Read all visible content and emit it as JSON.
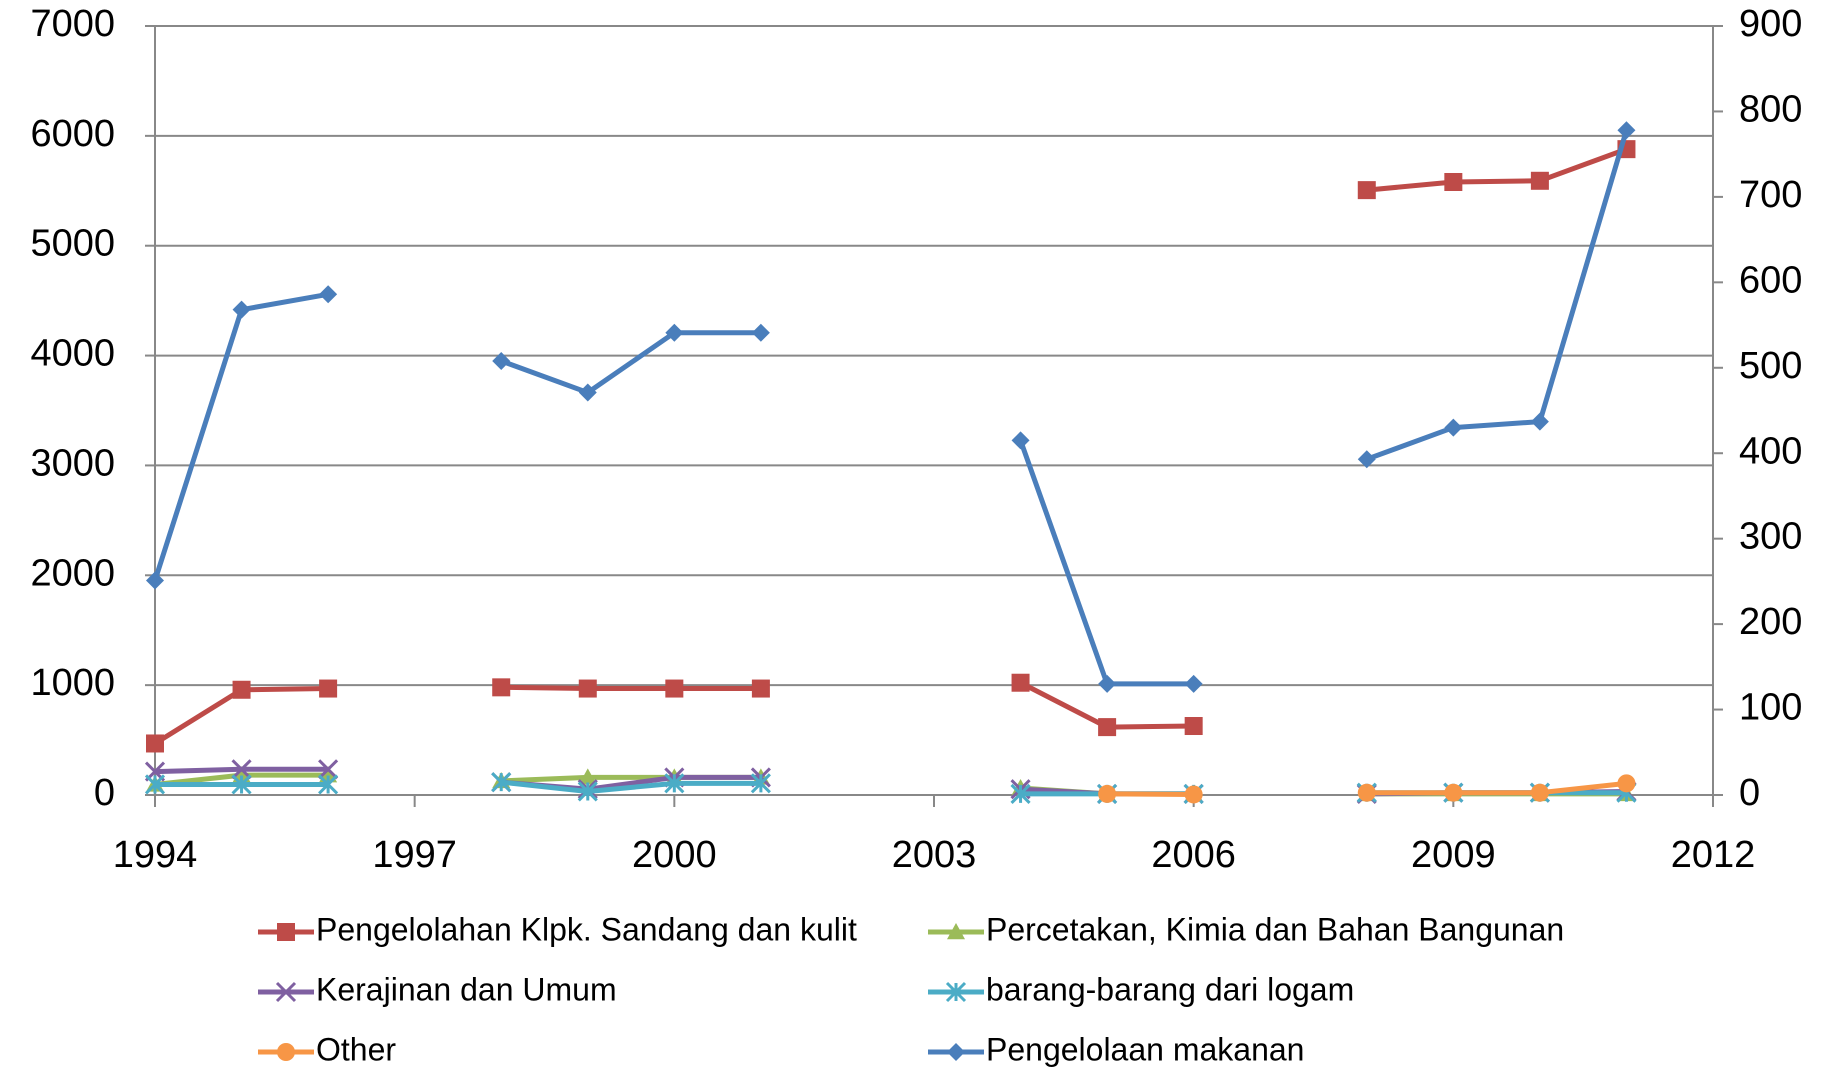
{
  "chart_data": {
    "type": "line",
    "x": [
      1994,
      1995,
      1996,
      1997,
      1998,
      1999,
      2000,
      2001,
      2002,
      2003,
      2004,
      2005,
      2006,
      2007,
      2008,
      2009,
      2010,
      2011
    ],
    "series": [
      {
        "name": "Pengelolahan Klpk. Sandang dan kulit",
        "color": "#be4b48",
        "marker": "square",
        "values": [
          469,
          958,
          969,
          null,
          980,
          969,
          969,
          969,
          null,
          null,
          1022,
          618,
          628,
          null,
          5506,
          5580,
          5591,
          5879
        ]
      },
      {
        "name": "Percetakan, Kimia dan Bahan Bangunan",
        "color": "#9bbb59",
        "marker": "triangle",
        "values": [
          96,
          181,
          181,
          null,
          128,
          160,
          160,
          160,
          null,
          null,
          64,
          10,
          10,
          null,
          10,
          10,
          10,
          10
        ]
      },
      {
        "name": "Kerajinan dan Umum",
        "color": "#7f60a1",
        "marker": "x",
        "values": [
          213,
          234,
          234,
          null,
          117,
          53,
          160,
          160,
          null,
          null,
          53,
          10,
          10,
          null,
          10,
          21,
          21,
          32
        ]
      },
      {
        "name": "barang-barang dari logam",
        "color": "#4bacc6",
        "marker": "asterisk",
        "values": [
          96,
          96,
          96,
          null,
          117,
          32,
          106,
          106,
          null,
          null,
          10,
          10,
          10,
          null,
          21,
          21,
          21,
          21
        ]
      },
      {
        "name": "Other",
        "color": "#f79646",
        "marker": "circle",
        "values": [
          null,
          null,
          null,
          null,
          null,
          null,
          null,
          null,
          null,
          null,
          null,
          10,
          5,
          null,
          21,
          21,
          21,
          106
        ]
      },
      {
        "name": "Pengelolaan makanan",
        "color": "#4a7ebb",
        "marker": "diamond",
        "axis": "y2",
        "values": [
          251,
          568,
          586,
          null,
          508,
          471,
          541,
          541,
          null,
          null,
          415,
          130,
          130,
          null,
          393,
          430,
          437,
          778
        ]
      }
    ],
    "xlim": [
      1994,
      2012
    ],
    "xticks": [
      1994,
      1997,
      2000,
      2003,
      2006,
      2009,
      2012
    ],
    "ylim": [
      0,
      7000
    ],
    "yticks": [
      0,
      1000,
      2000,
      3000,
      4000,
      5000,
      6000,
      7000
    ],
    "y2lim": [
      0,
      900
    ],
    "y2ticks": [
      0,
      100,
      200,
      300,
      400,
      500,
      600,
      700,
      800,
      900
    ],
    "grid": true,
    "legend": "bottom"
  }
}
